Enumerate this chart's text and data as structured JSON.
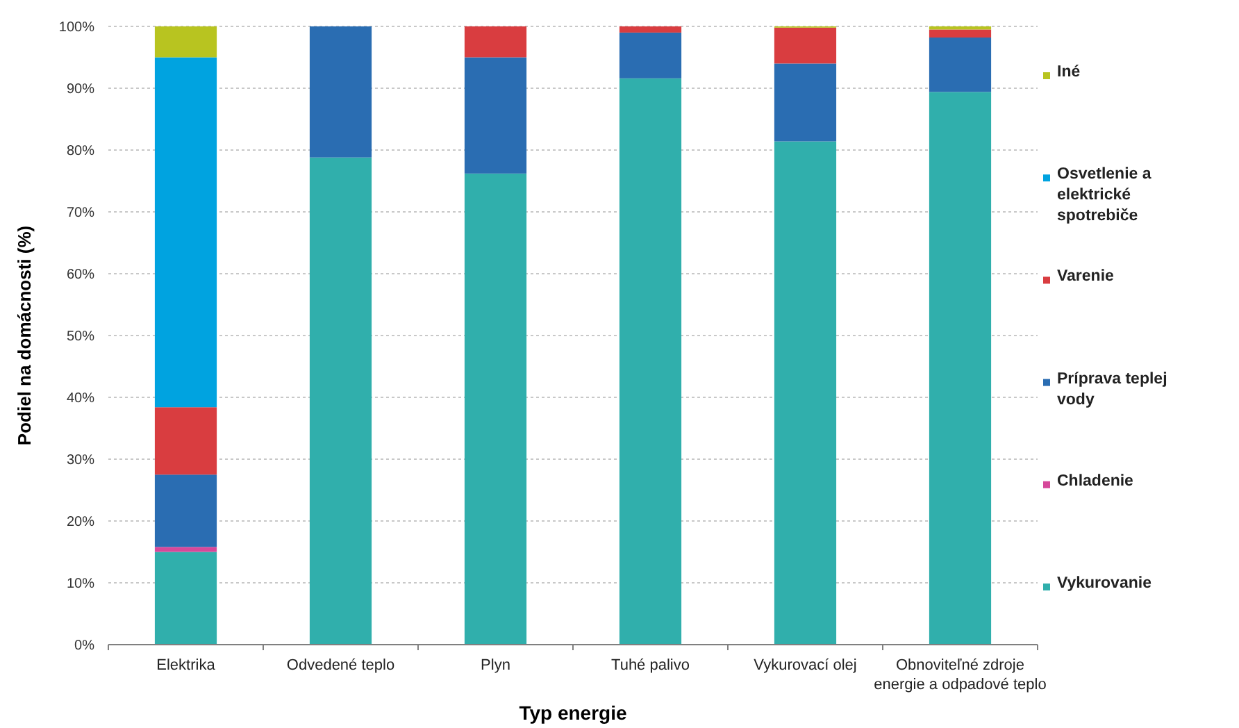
{
  "chart_data": {
    "type": "bar",
    "stacked": true,
    "xlabel": "Typ energie",
    "ylabel": "Podiel na domácnosti (%)",
    "categories": [
      "Elektrika",
      "Odvedené teplo",
      "Plyn",
      "Tuhé palivo",
      "Vykurovací olej",
      "Obnoviteľné zdroje energie a odpadové teplo"
    ],
    "series": [
      {
        "name": "Vykurovanie",
        "color": "#30afac",
        "values": [
          15,
          78.8,
          76.2,
          91.6,
          81.4,
          89.4
        ]
      },
      {
        "name": "Chladenie",
        "color": "#d6489a",
        "values": [
          0.8,
          0,
          0,
          0,
          0,
          0
        ]
      },
      {
        "name": "Príprava teplej vody",
        "color": "#2a6db2",
        "values": [
          11.7,
          21.2,
          18.8,
          7.4,
          12.6,
          8.8
        ]
      },
      {
        "name": "Varenie",
        "color": "#d93d40",
        "values": [
          10.9,
          0,
          5,
          1,
          5.8,
          1.3
        ]
      },
      {
        "name": "Osvetlenie a elektrické spotrebiče",
        "color": "#00a3e0",
        "values": [
          56.6,
          0,
          0,
          0,
          0,
          0
        ]
      },
      {
        "name": "Iné",
        "color": "#b8c420",
        "values": [
          5,
          0,
          0,
          0,
          0.2,
          0.5
        ]
      }
    ],
    "ylim": [
      0,
      100
    ],
    "yticks": [
      {
        "value": 0,
        "label": "0%"
      },
      {
        "value": 10,
        "label": "10%"
      },
      {
        "value": 20,
        "label": "20%"
      },
      {
        "value": 30,
        "label": "30%"
      },
      {
        "value": 40,
        "label": "40%"
      },
      {
        "value": 50,
        "label": "50%"
      },
      {
        "value": 60,
        "label": "60%"
      },
      {
        "value": 70,
        "label": "70%"
      },
      {
        "value": 80,
        "label": "80%"
      },
      {
        "value": 90,
        "label": "90%"
      },
      {
        "value": 100,
        "label": "100%"
      }
    ],
    "grid": "y",
    "legend": "right"
  }
}
